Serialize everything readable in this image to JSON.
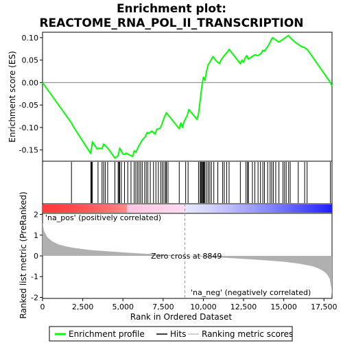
{
  "chart_data": {
    "type": "line",
    "title_line1": "Enrichment plot:",
    "title_line2": "REACTOME_RNA_POL_II_TRANSCRIPTION",
    "xlabel": "Rank in Ordered Dataset",
    "ylabel_top": "Enrichment score (ES)",
    "ylabel_bottom": "Ranked list metric (PreRanked)",
    "xlim": [
      0,
      18000
    ],
    "x_ticks": [
      0,
      2500,
      5000,
      7500,
      10000,
      12500,
      15000,
      17500
    ],
    "x_tick_labels": [
      "0",
      "2,500",
      "5,000",
      "7,500",
      "10,000",
      "12,500",
      "15,000",
      "17,500"
    ],
    "es_ylim": [
      -0.175,
      0.112
    ],
    "es_ticks": [
      -0.15,
      -0.1,
      -0.05,
      0.0,
      0.05,
      0.1
    ],
    "es_tick_labels": [
      "-0.15",
      "-0.10",
      "-0.05",
      "0.00",
      "0.05",
      "0.10"
    ],
    "metric_ylim": [
      -2.05,
      2.05
    ],
    "metric_ticks": [
      -2,
      -1,
      0,
      1,
      2
    ],
    "metric_tick_labels": [
      "-2",
      "-1",
      "0",
      "1",
      "2"
    ],
    "zero_cross_label": "Zero cross at 8849",
    "zero_cross_x": 8849,
    "pos_label": "'na_pos' (positively correlated)",
    "neg_label": "'na_neg' (negatively correlated)",
    "legend": {
      "items": [
        {
          "label": "Enrichment profile",
          "color": "#00ff00"
        },
        {
          "label": "Hits",
          "color": "#000000"
        },
        {
          "label": "Ranking metric scores",
          "color": "#c0c0c0"
        }
      ]
    },
    "colors": {
      "es_line": "#00ff00",
      "hits": "#000000",
      "metric_fill": "#b0b0b0",
      "pos_label": "#ff0000",
      "neg_label": "#0000ff"
    },
    "enrichment_profile": {
      "x": [
        0,
        1800,
        1900,
        3000,
        3100,
        3400,
        3500,
        3700,
        3800,
        3900,
        4100,
        4500,
        4700,
        4800,
        4900,
        5000,
        5100,
        5200,
        5600,
        5700,
        5800,
        5900,
        6000,
        6200,
        6400,
        6500,
        6600,
        6800,
        7000,
        7100,
        7300,
        7400,
        7500,
        7600,
        7700,
        8500,
        8600,
        8700,
        8800,
        9000,
        9100,
        9600,
        9700,
        9800,
        9900,
        10000,
        10100,
        10200,
        10300,
        10400,
        10500,
        10600,
        10800,
        11000,
        11100,
        11300,
        11500,
        11600,
        12300,
        12400,
        12500,
        12600,
        12700,
        12800,
        13000,
        13200,
        13400,
        13600,
        13700,
        13800,
        14000,
        14200,
        14300,
        14500,
        14700,
        14900,
        15100,
        15300,
        15400,
        15700,
        15900,
        16100,
        16300,
        16500,
        17900,
        18000
      ],
      "y": [
        0.0,
        -0.09,
        -0.097,
        -0.158,
        -0.132,
        -0.148,
        -0.146,
        -0.147,
        -0.137,
        -0.14,
        -0.148,
        -0.168,
        -0.163,
        -0.146,
        -0.152,
        -0.159,
        -0.16,
        -0.157,
        -0.165,
        -0.152,
        -0.155,
        -0.148,
        -0.14,
        -0.128,
        -0.12,
        -0.111,
        -0.113,
        -0.108,
        -0.115,
        -0.104,
        -0.102,
        -0.095,
        -0.085,
        -0.075,
        -0.067,
        -0.103,
        -0.09,
        -0.1,
        -0.087,
        -0.073,
        -0.06,
        -0.082,
        -0.07,
        -0.04,
        -0.01,
        0.012,
        0.005,
        0.025,
        0.04,
        0.045,
        0.052,
        0.058,
        0.048,
        0.042,
        0.05,
        0.06,
        0.068,
        0.074,
        0.042,
        0.05,
        0.045,
        0.055,
        0.06,
        0.052,
        0.057,
        0.062,
        0.06,
        0.065,
        0.072,
        0.07,
        0.08,
        0.093,
        0.1,
        0.095,
        0.09,
        0.095,
        0.1,
        0.105,
        0.1,
        0.09,
        0.085,
        0.08,
        0.078,
        0.072,
        0.0,
        -0.008
      ]
    },
    "hits_x": [
      1800,
      3000,
      3050,
      3100,
      3450,
      3700,
      3800,
      3900,
      4050,
      4500,
      4700,
      4750,
      4800,
      4900,
      5100,
      5300,
      5500,
      5700,
      5800,
      5900,
      6000,
      6100,
      6200,
      6350,
      6450,
      6550,
      6700,
      6900,
      7050,
      7200,
      7350,
      7450,
      7550,
      7650,
      7700,
      7800,
      8500,
      8900,
      9050,
      9700,
      9800,
      9850,
      9900,
      9950,
      10000,
      10050,
      10100,
      10200,
      10300,
      10400,
      10500,
      10650,
      10900,
      11200,
      11300,
      11450,
      11600,
      12300,
      12650,
      12750,
      12800,
      13050,
      13200,
      13400,
      13550,
      13700,
      13800,
      14000,
      14150,
      14250,
      14350,
      14500,
      14700,
      14950,
      15050,
      15150,
      15300,
      15400,
      15900,
      16300,
      16450,
      17900
    ],
    "metric": {
      "x": [
        0,
        100,
        300,
        600,
        1000,
        1500,
        2000,
        3000,
        4000,
        5000,
        6000,
        7000,
        8000,
        8849,
        10000,
        11000,
        12000,
        13000,
        14000,
        15000,
        16000,
        16800,
        17200,
        17500,
        17700,
        17850,
        17950,
        18000
      ],
      "y": [
        1.6,
        1.2,
        0.9,
        0.7,
        0.55,
        0.45,
        0.38,
        0.28,
        0.22,
        0.17,
        0.12,
        0.08,
        0.04,
        0.0,
        -0.04,
        -0.08,
        -0.12,
        -0.17,
        -0.22,
        -0.28,
        -0.38,
        -0.5,
        -0.62,
        -0.75,
        -0.9,
        -1.1,
        -1.5,
        -1.9
      ]
    }
  }
}
